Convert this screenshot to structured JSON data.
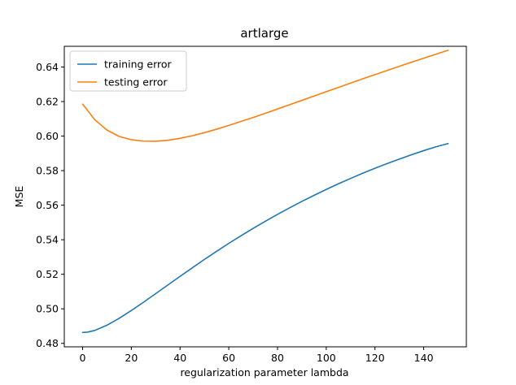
{
  "chart_data": {
    "type": "line",
    "title": "artlarge",
    "xlabel": "regularization parameter lambda",
    "ylabel": "MSE",
    "xlim": [
      -7.5,
      157.5
    ],
    "ylim": [
      0.478,
      0.652
    ],
    "xticks": [
      0,
      20,
      40,
      60,
      80,
      100,
      120,
      140
    ],
    "yticks": [
      0.48,
      0.5,
      0.52,
      0.54,
      0.56,
      0.58,
      0.6,
      0.62,
      0.64
    ],
    "ytick_labels": [
      "0.48",
      "0.50",
      "0.52",
      "0.54",
      "0.56",
      "0.58",
      "0.60",
      "0.62",
      "0.64"
    ],
    "grid": false,
    "legend_position": "top-left",
    "series": [
      {
        "name": "training error",
        "color": "#1f77b4",
        "x": [
          0,
          2,
          5,
          10,
          15,
          20,
          25,
          30,
          35,
          40,
          45,
          50,
          55,
          60,
          65,
          70,
          75,
          80,
          85,
          90,
          95,
          100,
          105,
          110,
          115,
          120,
          125,
          130,
          135,
          140,
          145,
          150
        ],
        "y": [
          0.4863,
          0.4865,
          0.4875,
          0.4905,
          0.4945,
          0.499,
          0.5038,
          0.5088,
          0.5138,
          0.5188,
          0.5237,
          0.5286,
          0.5333,
          0.5379,
          0.5423,
          0.5466,
          0.5507,
          0.5547,
          0.5585,
          0.5622,
          0.5657,
          0.5691,
          0.5724,
          0.5755,
          0.5785,
          0.5814,
          0.5841,
          0.5867,
          0.5892,
          0.5916,
          0.5938,
          0.5957
        ]
      },
      {
        "name": "testing error",
        "color": "#ff7f0e",
        "x": [
          0,
          2,
          5,
          10,
          15,
          20,
          25,
          30,
          35,
          40,
          45,
          50,
          55,
          60,
          65,
          70,
          75,
          80,
          85,
          90,
          95,
          100,
          105,
          110,
          115,
          120,
          125,
          130,
          135,
          140,
          145,
          150
        ],
        "y": [
          0.6185,
          0.615,
          0.6095,
          0.6035,
          0.5998,
          0.5979,
          0.5971,
          0.597,
          0.5976,
          0.5987,
          0.6002,
          0.602,
          0.604,
          0.6062,
          0.6085,
          0.6108,
          0.6132,
          0.6157,
          0.6182,
          0.6207,
          0.6232,
          0.6257,
          0.6282,
          0.6307,
          0.6332,
          0.6356,
          0.638,
          0.6404,
          0.6428,
          0.6451,
          0.6474,
          0.6497
        ]
      }
    ]
  }
}
